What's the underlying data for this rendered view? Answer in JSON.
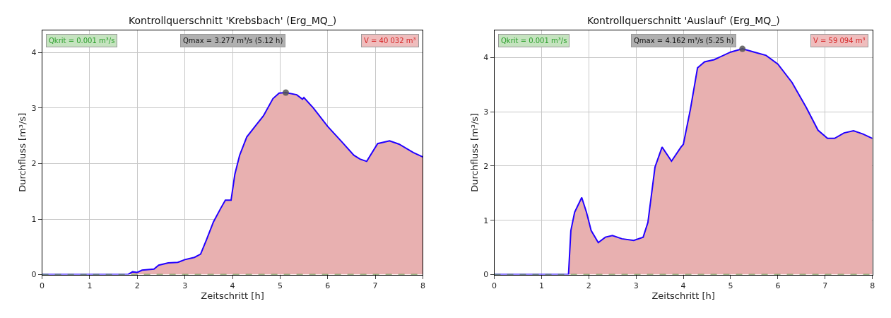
{
  "chart_data": [
    {
      "type": "area",
      "title": "Kontrollquerschnitt 'Krebsbach' (Erg_MQ_)",
      "xlabel": "Zeitschritt [h]",
      "ylabel": "Durchfluss [m³/s]",
      "xlim": [
        0,
        8
      ],
      "xticks": [
        0,
        1,
        2,
        3,
        4,
        5,
        6,
        7,
        8
      ],
      "ylim": [
        0,
        4.4
      ],
      "yticks": [
        0,
        1,
        2,
        3,
        4
      ],
      "grid": true,
      "series": [
        {
          "color": "#e8b0b0",
          "x": [
            0,
            1.8,
            1.9,
            2.0,
            2.1,
            2.35,
            2.45,
            2.65,
            2.85,
            3.0,
            3.2,
            3.33,
            3.45,
            3.6,
            3.75,
            3.85,
            3.97,
            4.05,
            4.15,
            4.3,
            4.5,
            4.65,
            4.85,
            4.98,
            5.12,
            5.35,
            5.47,
            5.5,
            5.7,
            6.0,
            6.3,
            6.55,
            6.68,
            6.82,
            7.05,
            7.3,
            7.5,
            7.8,
            8.0
          ],
          "values": [
            0,
            0,
            0.05,
            0.04,
            0.08,
            0.1,
            0.17,
            0.21,
            0.22,
            0.27,
            0.31,
            0.37,
            0.62,
            0.95,
            1.19,
            1.34,
            1.34,
            1.81,
            2.15,
            2.48,
            2.7,
            2.86,
            3.17,
            3.27,
            3.28,
            3.24,
            3.16,
            3.19,
            3.0,
            2.67,
            2.39,
            2.15,
            2.08,
            2.04,
            2.36,
            2.41,
            2.35,
            2.2,
            2.12
          ]
        },
        {
          "type": "scatter",
          "color": "#555555",
          "marker": "circle",
          "x": [
            5.12
          ],
          "values": [
            3.28
          ]
        }
      ],
      "ref_lines": [
        {
          "axis": "y",
          "value": 0.001,
          "label": "Qkrit = 0.001 m³/s",
          "color": "#3a7d1e",
          "line_style": "dashed"
        }
      ],
      "annotations": [
        "Qmax = 3.277 m³/s (5.12 h)",
        "V = 40 032 m³"
      ]
    },
    {
      "type": "area",
      "title": "Kontrollquerschnitt 'Auslauf' (Erg_MQ_)",
      "xlabel": "Zeitschritt [h]",
      "ylabel": "Durchfluss [m³/s]",
      "xlim": [
        0,
        8
      ],
      "xticks": [
        0,
        1,
        2,
        3,
        4,
        5,
        6,
        7,
        8
      ],
      "ylim": [
        0,
        4.5
      ],
      "yticks": [
        0,
        1,
        2,
        3,
        4
      ],
      "grid": true,
      "series": [
        {
          "color": "#e8b0b0",
          "x": [
            0,
            1.57,
            1.62,
            1.7,
            1.85,
            1.95,
            2.05,
            2.2,
            2.35,
            2.5,
            2.7,
            2.95,
            3.15,
            3.25,
            3.4,
            3.55,
            3.75,
            3.95,
            4.0,
            4.15,
            4.3,
            4.45,
            4.65,
            5.0,
            5.25,
            5.5,
            5.75,
            6.0,
            6.3,
            6.6,
            6.85,
            7.05,
            7.2,
            7.4,
            7.6,
            7.8,
            8.0
          ],
          "values": [
            0,
            0,
            0.81,
            1.15,
            1.42,
            1.15,
            0.81,
            0.59,
            0.69,
            0.72,
            0.66,
            0.63,
            0.69,
            0.96,
            1.98,
            2.35,
            2.09,
            2.35,
            2.4,
            3.05,
            3.81,
            3.92,
            3.96,
            4.1,
            4.16,
            4.1,
            4.04,
            3.88,
            3.54,
            3.08,
            2.66,
            2.51,
            2.51,
            2.61,
            2.65,
            2.59,
            2.51
          ]
        },
        {
          "type": "scatter",
          "color": "#555555",
          "marker": "circle",
          "x": [
            5.25
          ],
          "values": [
            4.16
          ]
        }
      ],
      "ref_lines": [
        {
          "axis": "y",
          "value": 0.001,
          "label": "Qkrit = 0.001 m³/s",
          "color": "#3a7d1e",
          "line_style": "dashed"
        }
      ],
      "annotations": [
        "Qmax = 4.162 m³/s (5.25 h)",
        "V = 59 094 m³"
      ]
    }
  ]
}
